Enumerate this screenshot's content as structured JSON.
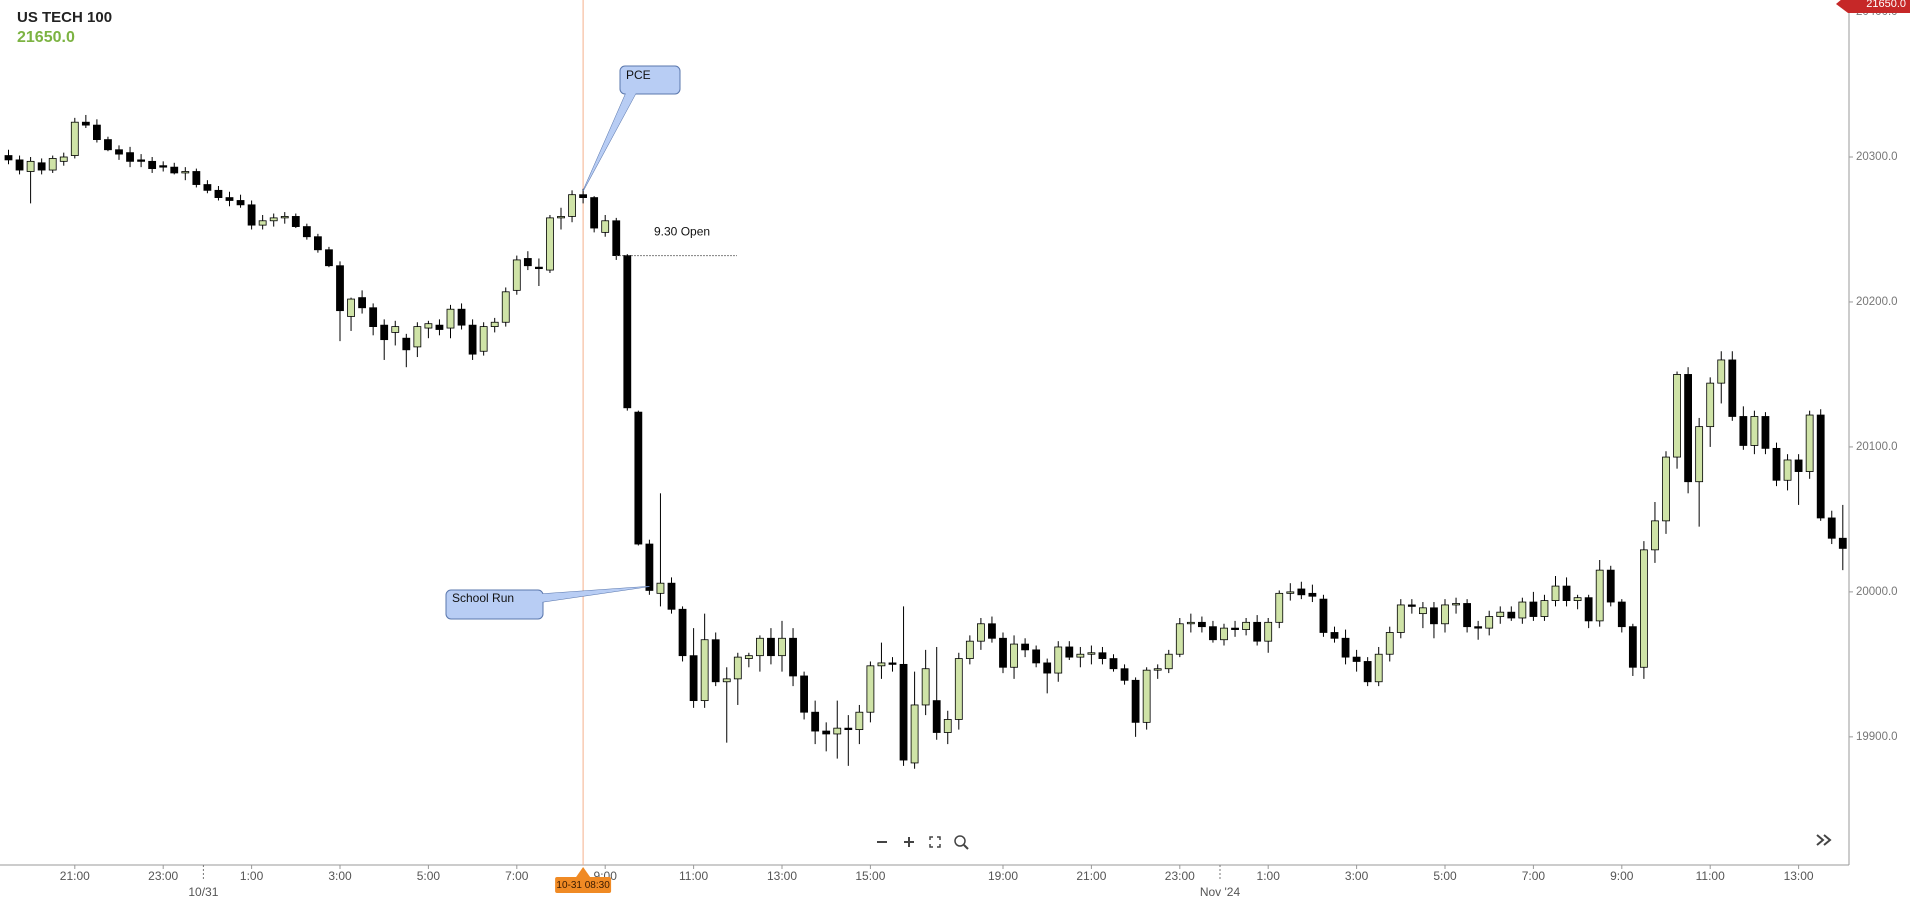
{
  "chart_data": {
    "type": "candlestick",
    "title": "US TECH 100",
    "last_price": {
      "value": 21650,
      "label": "21650.0"
    },
    "up_color": "#cfe3a7",
    "down_color": "#000000",
    "ylim": [
      19811.6,
      20408.3
    ],
    "yticks": [
      {
        "value": 19900,
        "label": "19900.0"
      },
      {
        "value": 20000,
        "label": "20000.0"
      },
      {
        "value": 20100,
        "label": "20100.0"
      },
      {
        "value": 20200,
        "label": "20200.0"
      },
      {
        "value": 20300,
        "label": "20300.0"
      },
      {
        "value": 20400,
        "label": "20400.0"
      }
    ],
    "crosshair": {
      "label": "10-31 08:30"
    },
    "annotations": [
      {
        "text": "PCE"
      },
      {
        "text": "School Run"
      },
      {
        "text": "9.30 Open",
        "value": 20232
      }
    ],
    "categories": [
      null,
      null,
      null,
      null,
      null,
      null,
      "21:00",
      null,
      null,
      null,
      null,
      null,
      null,
      null,
      "23:00",
      null,
      null,
      null,
      null,
      null,
      null,
      null,
      "1:00",
      null,
      null,
      null,
      null,
      null,
      null,
      null,
      "3:00",
      null,
      null,
      null,
      null,
      null,
      null,
      null,
      "5:00",
      null,
      null,
      null,
      null,
      null,
      null,
      null,
      "7:00",
      null,
      null,
      null,
      null,
      null,
      null,
      null,
      "9:00",
      null,
      null,
      null,
      null,
      null,
      null,
      null,
      "11:00",
      null,
      null,
      null,
      null,
      null,
      null,
      null,
      "13:00",
      null,
      null,
      null,
      null,
      null,
      null,
      null,
      "15:00",
      null,
      null,
      null,
      null,
      null,
      null,
      null,
      null,
      null,
      null,
      null,
      "19:00",
      null,
      null,
      null,
      null,
      null,
      null,
      null,
      "21:00",
      null,
      null,
      null,
      null,
      null,
      null,
      null,
      "23:00",
      null,
      null,
      null,
      null,
      null,
      null,
      null,
      "1:00",
      null,
      null,
      null,
      null,
      null,
      null,
      null,
      "3:00",
      null,
      null,
      null,
      null,
      null,
      null,
      null,
      "5:00",
      null,
      null,
      null,
      null,
      null,
      null,
      null,
      "7:00",
      null,
      null,
      null,
      null,
      null,
      null,
      null,
      "9:00",
      null,
      null,
      null,
      null,
      null,
      null,
      null,
      "11:00",
      null,
      null,
      null,
      null,
      null,
      null,
      null,
      "13:00",
      null,
      null,
      null,
      null
    ],
    "dates": [
      null,
      null,
      null,
      null,
      null,
      null,
      null,
      null,
      null,
      null,
      null,
      null,
      null,
      null,
      null,
      null,
      null,
      null,
      "10/31",
      null,
      null,
      null,
      null,
      null,
      null,
      null,
      null,
      null,
      null,
      null,
      null,
      null,
      null,
      null,
      null,
      null,
      null,
      null,
      null,
      null,
      null,
      null,
      null,
      null,
      null,
      null,
      null,
      null,
      null,
      null,
      null,
      null,
      null,
      null,
      null,
      null,
      null,
      null,
      null,
      null,
      null,
      null,
      null,
      null,
      null,
      null,
      null,
      null,
      null,
      null,
      null,
      null,
      null,
      null,
      null,
      null,
      null,
      null,
      null,
      null,
      null,
      null,
      null,
      null,
      null,
      null,
      null,
      null,
      null,
      null,
      null,
      null,
      null,
      null,
      null,
      null,
      null,
      null,
      null,
      null,
      null,
      null,
      null,
      null,
      null,
      null,
      null,
      null,
      null,
      null,
      "Nov '24",
      null,
      null,
      null,
      null,
      null,
      null,
      null,
      null,
      null,
      null,
      null,
      null,
      null,
      null,
      null,
      null,
      null,
      null,
      null,
      null,
      null,
      null,
      null,
      null,
      null,
      null,
      null,
      null,
      null,
      null,
      null,
      null,
      null,
      null,
      null,
      null,
      null,
      null,
      null,
      null,
      null,
      null,
      null,
      null,
      null,
      null,
      null,
      null,
      null,
      null,
      null,
      null,
      null,
      null,
      null,
      null
    ],
    "open": [
      20301,
      20298,
      20290,
      20296,
      20291,
      20297,
      20301,
      20324,
      20322,
      20312,
      20305,
      20303,
      20298,
      20297,
      20294,
      20293,
      20289,
      20290,
      20281,
      20277,
      20272,
      20270,
      20267,
      20253,
      20256,
      20258,
      20259,
      20252,
      20245,
      20236,
      20225,
      20190,
      20203,
      20196,
      20184,
      20179,
      20175,
      20169,
      20182,
      20184,
      20182,
      20195,
      20184,
      20166,
      20183,
      20186,
      20208,
      20230,
      20224,
      20222,
      20258,
      20259,
      20274,
      20272,
      20248,
      20256,
      20232,
      20124,
      20033,
      19999,
      20006,
      19988,
      19956,
      19925,
      19967,
      19938,
      19940,
      19954,
      19956,
      19968,
      19956,
      19968,
      19942,
      19917,
      19904,
      19902,
      19906,
      19905,
      19917,
      19949,
      19951,
      19950,
      19882,
      19922,
      19925,
      19903,
      19912,
      19954,
      19966,
      19978,
      19968,
      19948,
      19964,
      19960,
      19951,
      19944,
      19962,
      19955,
      19957,
      19958,
      19954,
      19947,
      19939,
      19910,
      19946,
      19947,
      19957,
      19978,
      19979,
      19976,
      19967,
      19975,
      19974,
      19979,
      19966,
      19979,
      19999,
      20002,
      19999,
      19995,
      19972,
      19968,
      19955,
      19952,
      19938,
      19957,
      19972,
      19991,
      19985,
      19989,
      19978,
      19991,
      19992,
      19976,
      19975,
      19983,
      19986,
      19982,
      19993,
      19983,
      19994,
      20004,
      19994,
      19996,
      19980,
      20015,
      19993,
      19976,
      19948,
      20029,
      20049,
      20093,
      20150,
      20076,
      20114,
      20144,
      20160,
      20121,
      20101,
      20121,
      20099,
      20077,
      20091,
      20083,
      20122,
      20051,
      20037
    ],
    "high": [
      20305,
      20301,
      20300,
      20299,
      20301,
      20303,
      20327,
      20329,
      20326,
      20314,
      20308,
      20307,
      20302,
      20300,
      20297,
      20296,
      20293,
      20292,
      20284,
      20280,
      20276,
      20274,
      20270,
      20260,
      20261,
      20262,
      20261,
      20254,
      20247,
      20238,
      20228,
      20203,
      20208,
      20199,
      20188,
      20187,
      20178,
      20186,
      20187,
      20188,
      20198,
      20199,
      20188,
      20186,
      20189,
      20210,
      20232,
      20235,
      20230,
      20260,
      20265,
      20277,
      20278,
      20273,
      20260,
      20258,
      20233,
      20125,
      20036,
      20068,
      20010,
      19990,
      19975,
      19985,
      19972,
      19948,
      19958,
      19958,
      19970,
      19975,
      19980,
      19975,
      19945,
      19925,
      19910,
      19925,
      19915,
      19922,
      19952,
      19965,
      19955,
      19990,
      19945,
      19960,
      19962,
      19918,
      19958,
      19970,
      19982,
      19983,
      19972,
      19970,
      19968,
      19963,
      19954,
      19966,
      19966,
      19962,
      19963,
      19962,
      19957,
      19950,
      19941,
      19948,
      19950,
      19960,
      19982,
      19985,
      19983,
      19980,
      19978,
      19980,
      19982,
      19984,
      19982,
      20001,
      20006,
      20007,
      20005,
      19998,
      19976,
      19974,
      19960,
      19955,
      19962,
      19976,
      19995,
      19995,
      19993,
      19993,
      19995,
      19996,
      19995,
      19980,
      19987,
      19990,
      19990,
      19996,
      20000,
      19998,
      20011,
      20010,
      19998,
      19998,
      20022,
      20018,
      19995,
      19978,
      20035,
      20062,
      20097,
      20152,
      20155,
      20120,
      20148,
      20166,
      20166,
      20128,
      20125,
      20124,
      20103,
      20095,
      20095,
      20125,
      20126,
      20056,
      20060
    ],
    "low": [
      20295,
      20288,
      20268,
      20288,
      20289,
      20294,
      20299,
      20320,
      20310,
      20304,
      20298,
      20293,
      20293,
      20289,
      20290,
      20288,
      20284,
      20279,
      20275,
      20270,
      20266,
      20265,
      20250,
      20250,
      20252,
      20254,
      20251,
      20243,
      20234,
      20224,
      20173,
      20180,
      20192,
      20177,
      20160,
      20170,
      20155,
      20162,
      20175,
      20177,
      20175,
      20181,
      20160,
      20163,
      20179,
      20183,
      20205,
      20222,
      20211,
      20220,
      20250,
      20255,
      20268,
      20248,
      20245,
      20229,
      20125,
      20032,
      19998,
      19990,
      19985,
      19952,
      19920,
      19920,
      19935,
      19896,
      19922,
      19948,
      19945,
      19950,
      19945,
      19935,
      19912,
      19895,
      19890,
      19885,
      19880,
      19895,
      19910,
      19940,
      19945,
      19880,
      19878,
      19915,
      19898,
      19895,
      19905,
      19950,
      19960,
      19965,
      19944,
      19940,
      19955,
      19948,
      19930,
      19938,
      19953,
      19948,
      19950,
      19950,
      19945,
      19936,
      19900,
      19905,
      19940,
      19944,
      19955,
      19972,
      19972,
      19965,
      19963,
      19969,
      19970,
      19963,
      19958,
      19975,
      19994,
      19995,
      19993,
      19969,
      19965,
      19950,
      19945,
      19935,
      19935,
      19952,
      19968,
      19985,
      19975,
      19968,
      19972,
      19985,
      19972,
      19967,
      19970,
      19978,
      19980,
      19978,
      19980,
      19980,
      19990,
      19990,
      19988,
      19975,
      19976,
      19990,
      19972,
      19942,
      19940,
      20020,
      20040,
      20085,
      20068,
      20045,
      20100,
      20130,
      20118,
      20098,
      20095,
      20095,
      20073,
      20070,
      20060,
      20078,
      20049,
      20033,
      20015
    ],
    "close": [
      20298,
      20291,
      20297,
      20291,
      20299,
      20300,
      20324,
      20322,
      20312,
      20305,
      20302,
      20297,
      20297,
      20292,
      20293,
      20289,
      20290,
      20281,
      20277,
      20272,
      20270,
      20267,
      20253,
      20256,
      20258,
      20259,
      20252,
      20245,
      20236,
      20225,
      20194,
      20202,
      20196,
      20183,
      20174,
      20183,
      20167,
      20183,
      20185,
      20181,
      20195,
      20184,
      20164,
      20183,
      20186,
      20207,
      20229,
      20225,
      20223,
      20258,
      20259,
      20274,
      20272,
      20251,
      20256,
      20232,
      20127,
      20033,
      20001,
      20006,
      19988,
      19956,
      19925,
      19967,
      19938,
      19940,
      19955,
      19956,
      19968,
      19956,
      19968,
      19942,
      19917,
      19904,
      19902,
      19906,
      19905,
      19917,
      19949,
      19951,
      19950,
      19884,
      19922,
      19947,
      19903,
      19912,
      19954,
      19966,
      19978,
      19968,
      19948,
      19964,
      19960,
      19951,
      19944,
      19962,
      19955,
      19957,
      19958,
      19954,
      19947,
      19939,
      19910,
      19946,
      19947,
      19957,
      19978,
      19979,
      19976,
      19967,
      19975,
      19974,
      19979,
      19966,
      19979,
      19999,
      20000,
      19998,
      19997,
      19972,
      19968,
      19955,
      19952,
      19938,
      19957,
      19972,
      19991,
      19990,
      19989,
      19978,
      19991,
      19992,
      19976,
      19975,
      19983,
      19986,
      19982,
      19993,
      19983,
      19994,
      20004,
      19994,
      19996,
      19980,
      20015,
      19993,
      19976,
      19948,
      20029,
      20049,
      20093,
      20150,
      20076,
      20114,
      20144,
      20160,
      20121,
      20101,
      20121,
      20099,
      20077,
      20091,
      20083,
      20122,
      20051,
      20037,
      20030
    ]
  }
}
